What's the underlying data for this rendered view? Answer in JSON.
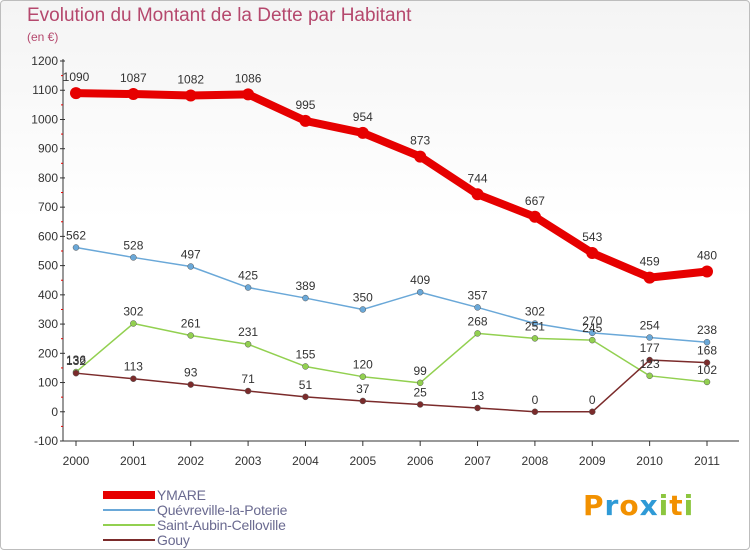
{
  "title": "Evolution du Montant de la Dette par Habitant",
  "unit": "(en €)",
  "logo": {
    "letters": [
      "P",
      "r",
      "o",
      "x",
      "i",
      "t",
      "i"
    ],
    "colors": [
      "#f29100",
      "#2f9ad6",
      "#f29100",
      "#2f9ad6",
      "#8cc63f",
      "#f29100",
      "#8cc63f"
    ]
  },
  "chart_data": {
    "type": "line",
    "categories": [
      "2000",
      "2001",
      "2002",
      "2003",
      "2004",
      "2005",
      "2006",
      "2007",
      "2008",
      "2009",
      "2010",
      "2011"
    ],
    "ylim": [
      -100,
      1200
    ],
    "yticks": [
      -100,
      0,
      100,
      200,
      300,
      400,
      500,
      600,
      700,
      800,
      900,
      1000,
      1100,
      1200
    ],
    "grid": false,
    "legend": "bottom-left",
    "series": [
      {
        "name": "YMARE",
        "color": "#e60000",
        "values": [
          1090,
          1087,
          1082,
          1086,
          995,
          954,
          873,
          744,
          667,
          543,
          459,
          480
        ]
      },
      {
        "name": "Quévreville-la-Poterie",
        "color": "#6aa8d8",
        "values": [
          562,
          528,
          497,
          425,
          389,
          350,
          409,
          357,
          302,
          270,
          254,
          238
        ]
      },
      {
        "name": "Saint-Aubin-Celloville",
        "color": "#92d050",
        "values": [
          136,
          302,
          261,
          231,
          155,
          120,
          99,
          268,
          251,
          245,
          123,
          102
        ]
      },
      {
        "name": "Gouy",
        "color": "#7b2b2b",
        "values": [
          132,
          113,
          93,
          71,
          51,
          37,
          25,
          13,
          0,
          0,
          177,
          168
        ]
      }
    ]
  }
}
